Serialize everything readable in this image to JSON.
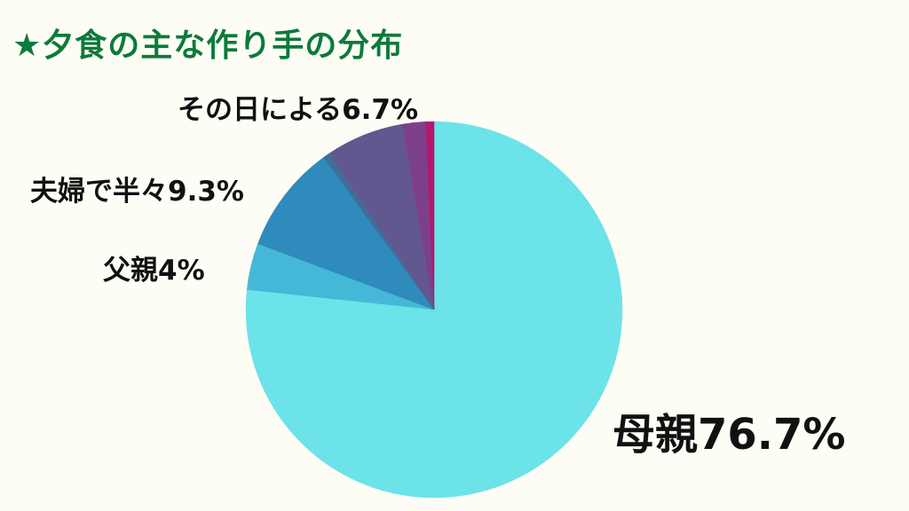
{
  "title": "★夕食の主な作り手の分布",
  "chart_data": {
    "type": "pie",
    "title": "★夕食の主な作り手の分布",
    "start_angle_deg": 0,
    "direction": "clockwise",
    "slices": [
      {
        "label": "母親",
        "value": 76.7,
        "color": "#6ce3e8"
      },
      {
        "label": "父親",
        "value": 4.0,
        "color": "#45b8d8"
      },
      {
        "label": "夫婦で半々",
        "value": 9.3,
        "color": "#2e8bbc"
      },
      {
        "label": "",
        "value": 0.6,
        "color": "#3f6f99"
      },
      {
        "label": "その日による",
        "value": 6.7,
        "color": "#63578f"
      },
      {
        "label": "",
        "value": 2.0,
        "color": "#7e3f8a"
      },
      {
        "label": "",
        "value": 0.7,
        "color": "#b5176e"
      }
    ],
    "labels_text": {
      "sono": "その日による6.7%",
      "fufu": "夫婦で半々9.3%",
      "chichi": "父親4%",
      "haha": "母親76.7%"
    }
  }
}
